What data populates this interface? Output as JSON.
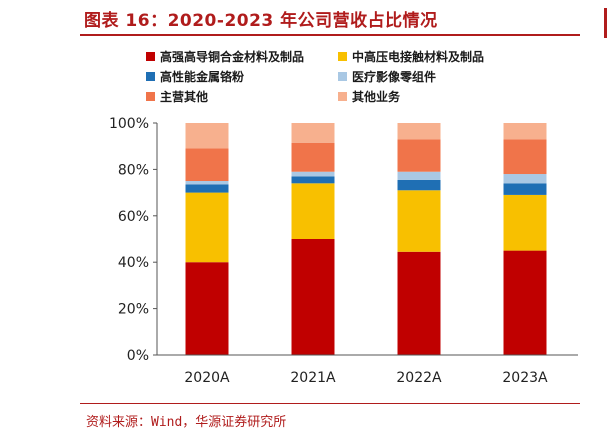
{
  "title": "图表 16：2020-2023 年公司营收占比情况",
  "source": "资料来源：Wind，华源证券研究所",
  "chart_data": {
    "type": "bar",
    "stacked": true,
    "categories": [
      "2020A",
      "2021A",
      "2022A",
      "2023A"
    ],
    "ylim": [
      0,
      100
    ],
    "yticks": [
      "0%",
      "20%",
      "40%",
      "60%",
      "80%",
      "100%"
    ],
    "grid": false,
    "legend_position": "top",
    "series": [
      {
        "name": "高强高导铜合金材料及制品",
        "color": "#c00000",
        "values": [
          40,
          50,
          44.5,
          45
        ]
      },
      {
        "name": "中高压电接触材料及制品",
        "color": "#f8c000",
        "values": [
          30,
          24,
          26.5,
          24
        ]
      },
      {
        "name": "高性能金属铬粉",
        "color": "#1f6fb4",
        "values": [
          3.5,
          3,
          4.5,
          5
        ]
      },
      {
        "name": "医疗影像零组件",
        "color": "#a9c8e4",
        "values": [
          1.5,
          2,
          3.5,
          4
        ]
      },
      {
        "name": "主营其他",
        "color": "#f0744a",
        "values": [
          14,
          12.5,
          14,
          15
        ]
      },
      {
        "name": "其他业务",
        "color": "#f7b08e",
        "values": [
          11,
          8.5,
          7,
          7
        ]
      }
    ]
  }
}
